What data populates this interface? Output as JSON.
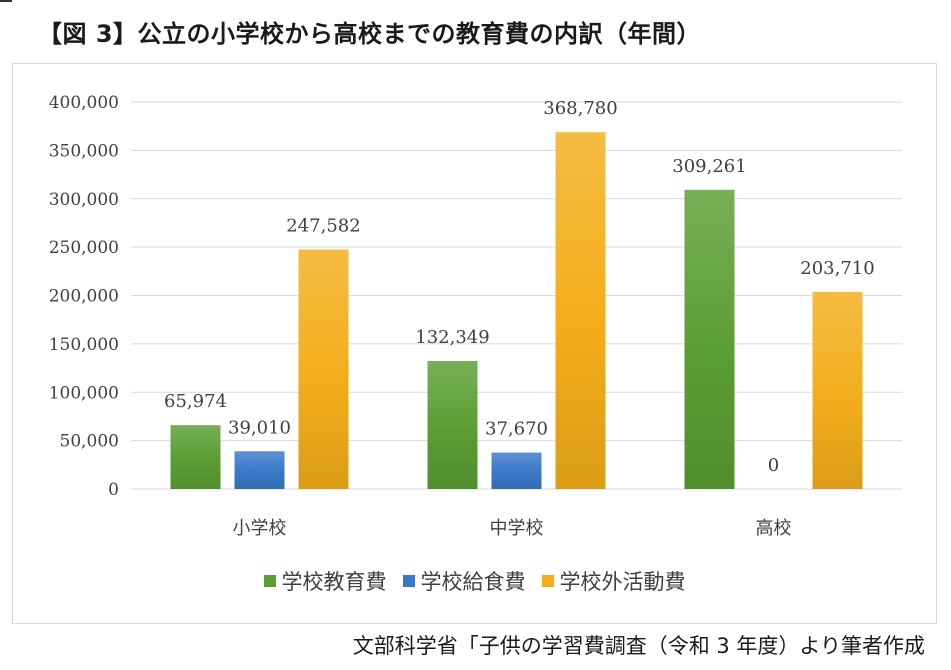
{
  "page": {
    "title": "【図 3】公立の小学校から高校までの教育費の内訳（年間）",
    "source": "文部科学省「子供の学習費調査（令和 3 年度）より筆者作成"
  },
  "chart_data": {
    "type": "bar",
    "title": "",
    "xlabel": "",
    "ylabel": "",
    "categories": [
      "小学校",
      "中学校",
      "高校"
    ],
    "series": [
      {
        "name": "学校教育費",
        "values": [
          65974,
          132349,
          309261
        ],
        "labels": [
          "65,974",
          "132,349",
          "309,261"
        ],
        "color": "#5a9e32"
      },
      {
        "name": "学校給食費",
        "values": [
          39010,
          37670,
          0
        ],
        "labels": [
          "39,010",
          "37,670",
          "0"
        ],
        "color": "#3a78c8"
      },
      {
        "name": "学校外活動費",
        "values": [
          247582,
          368780,
          203710
        ],
        "labels": [
          "247,582",
          "368,780",
          "203,710"
        ],
        "color": "#f3ad1a"
      }
    ],
    "ylim": [
      0,
      400000
    ],
    "yticks": [
      0,
      50000,
      100000,
      150000,
      200000,
      250000,
      300000,
      350000,
      400000
    ],
    "ytick_labels": [
      "0",
      "50,000",
      "100,000",
      "150,000",
      "200,000",
      "250,000",
      "300,000",
      "350,000",
      "400,000"
    ],
    "grid": true,
    "legend_position": "bottom"
  }
}
